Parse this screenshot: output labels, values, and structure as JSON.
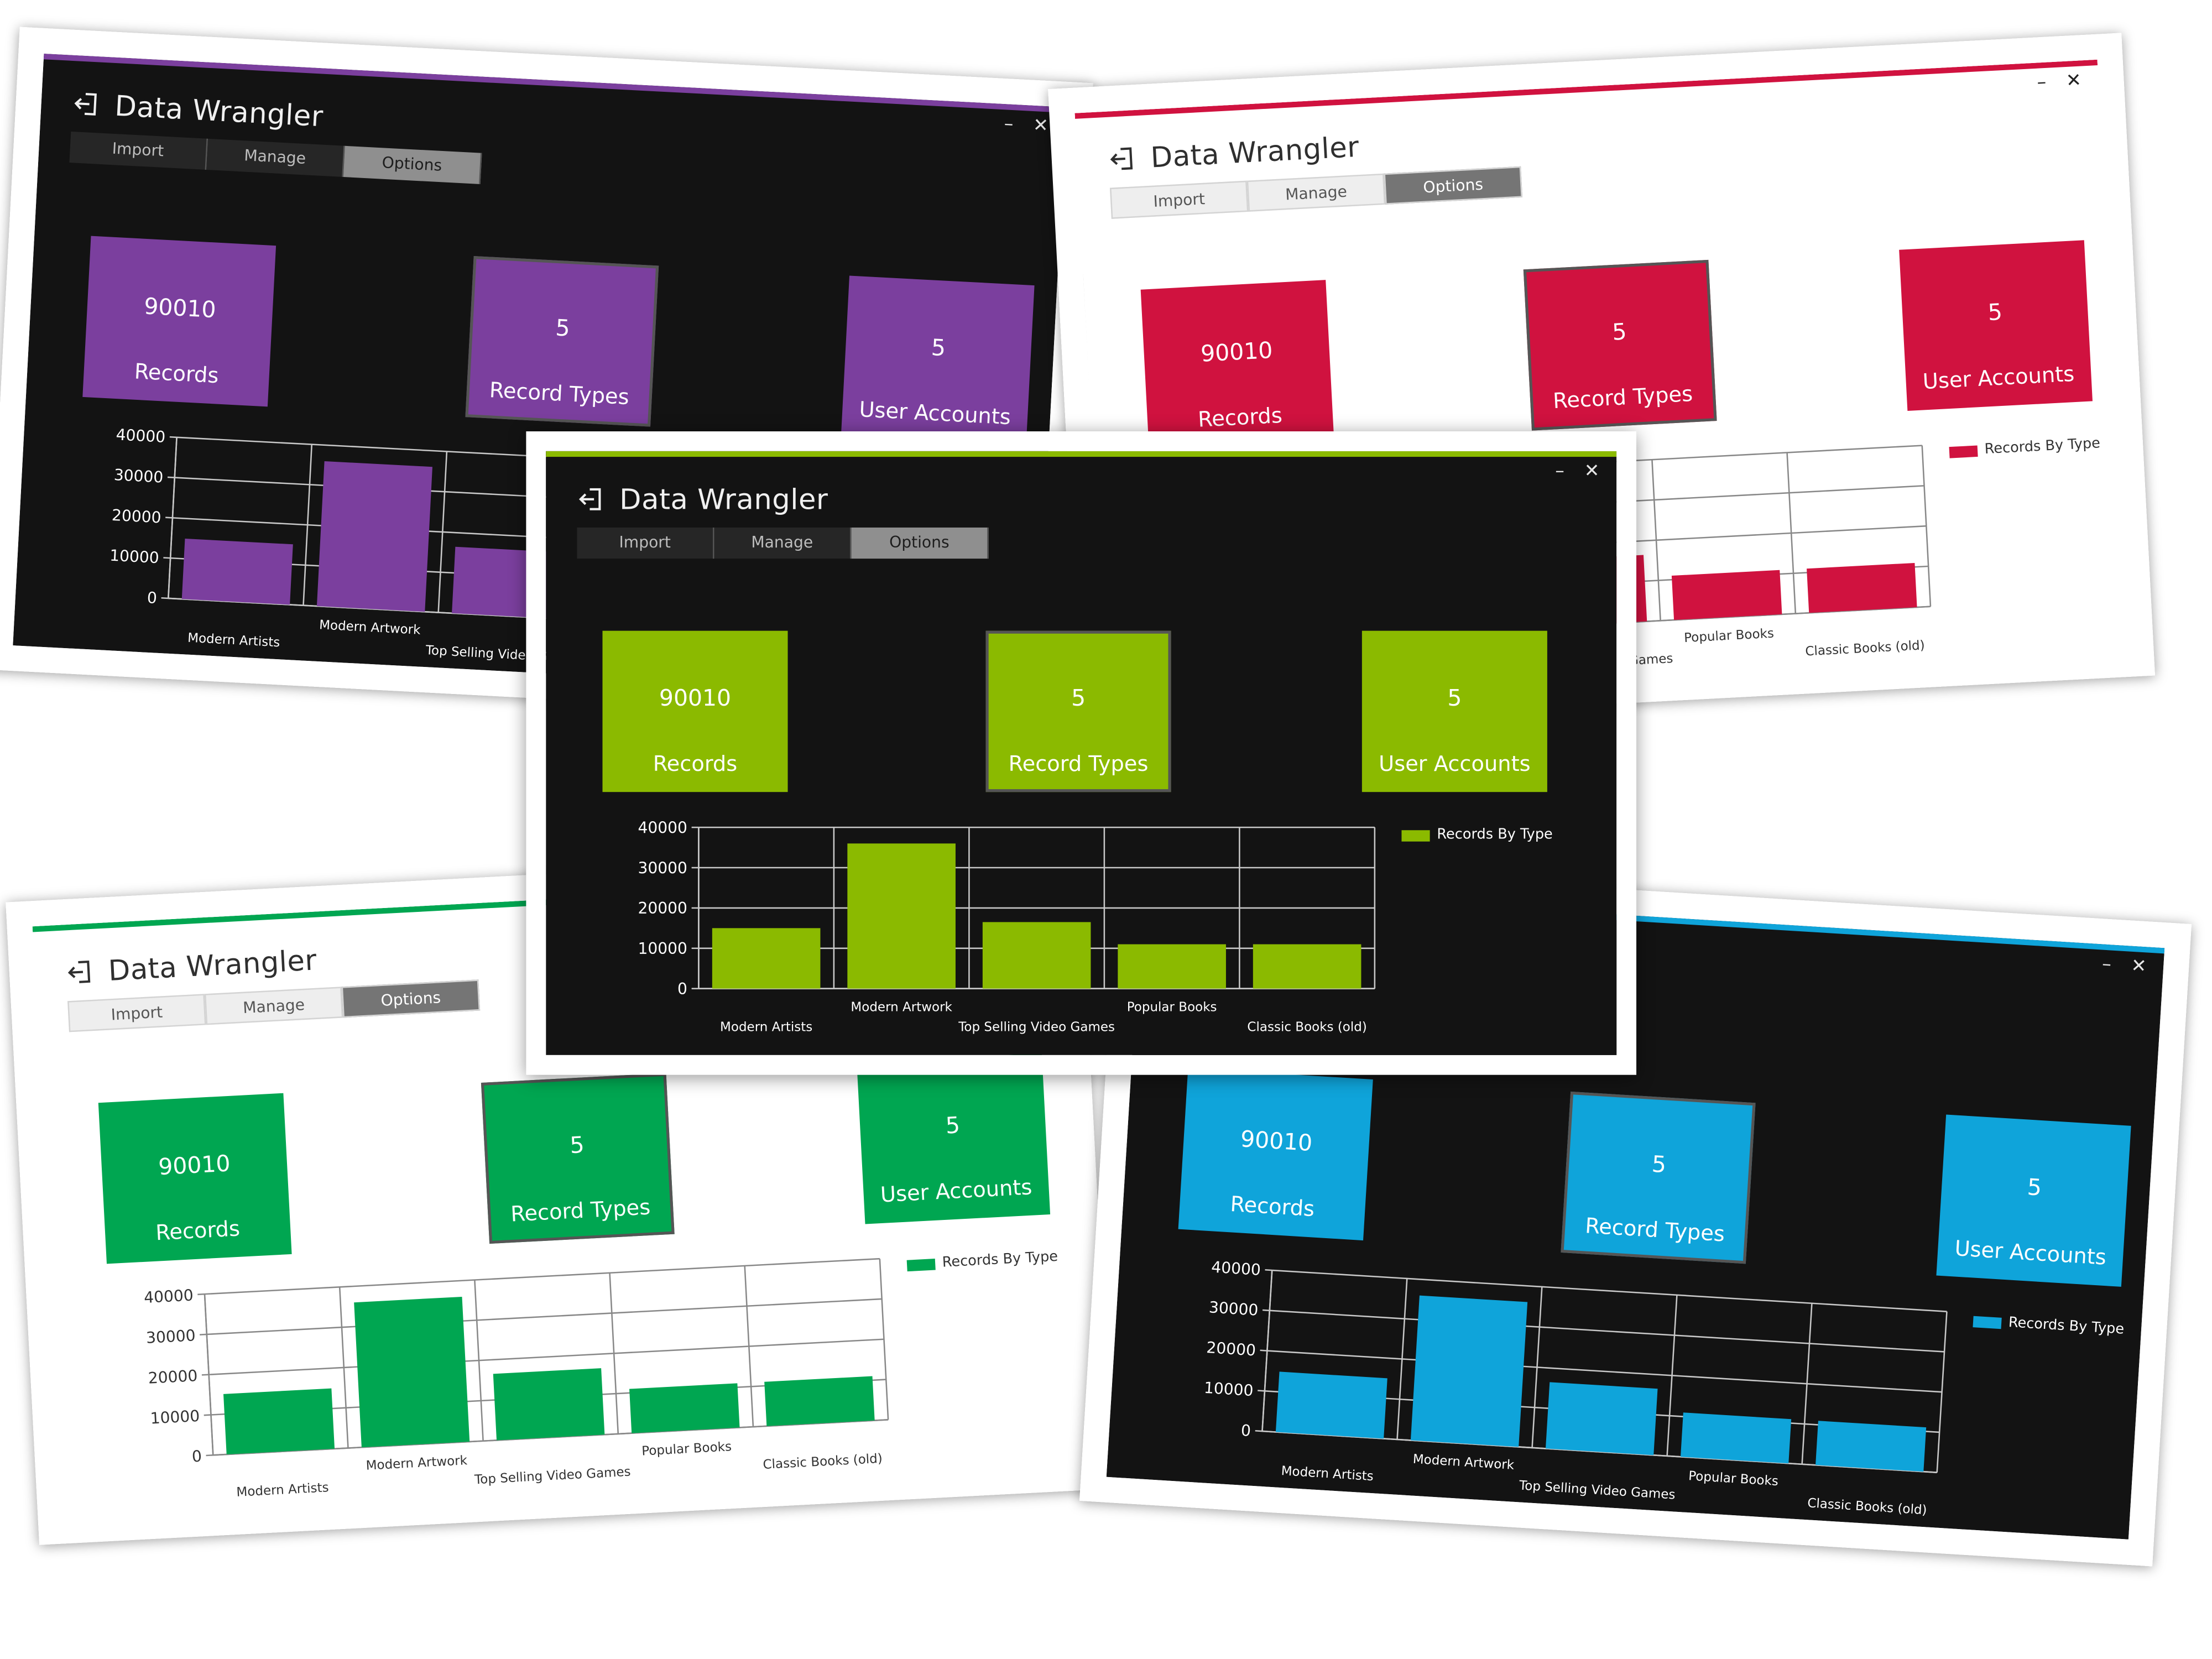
{
  "app": {
    "title": "Data Wrangler",
    "tabs": [
      "Import",
      "Manage",
      "Options"
    ],
    "active_tab": "Options",
    "minimize_glyph": "–",
    "close_glyph": "✕",
    "exit_icon": "sign-out-icon"
  },
  "tiles": [
    {
      "number": "90010",
      "label": "Records"
    },
    {
      "number": "5",
      "label": "Record Types"
    },
    {
      "number": "5",
      "label": "User Accounts"
    }
  ],
  "legend_label": "Records By Type",
  "themes": [
    {
      "id": "purple",
      "mode": "dark",
      "accent": "#7B3F9E"
    },
    {
      "id": "red",
      "mode": "light",
      "accent": "#D0123F"
    },
    {
      "id": "green",
      "mode": "light",
      "accent": "#00A651"
    },
    {
      "id": "blue",
      "mode": "dark",
      "accent": "#0FA4DA"
    },
    {
      "id": "lime",
      "mode": "dark",
      "accent": "#8BBA00"
    }
  ],
  "chart_data": {
    "type": "bar",
    "categories": [
      "Modern Artists",
      "Modern Artwork",
      "Top Selling Video Games",
      "Popular Books",
      "Classic Books (old)"
    ],
    "series": [
      {
        "name": "Records By Type",
        "values": [
          15000,
          36000,
          16500,
          11000,
          11000
        ]
      }
    ],
    "ylim": [
      0,
      40000
    ],
    "yticks": [
      0,
      10000,
      20000,
      30000,
      40000
    ],
    "grid": true,
    "legend": "right"
  }
}
